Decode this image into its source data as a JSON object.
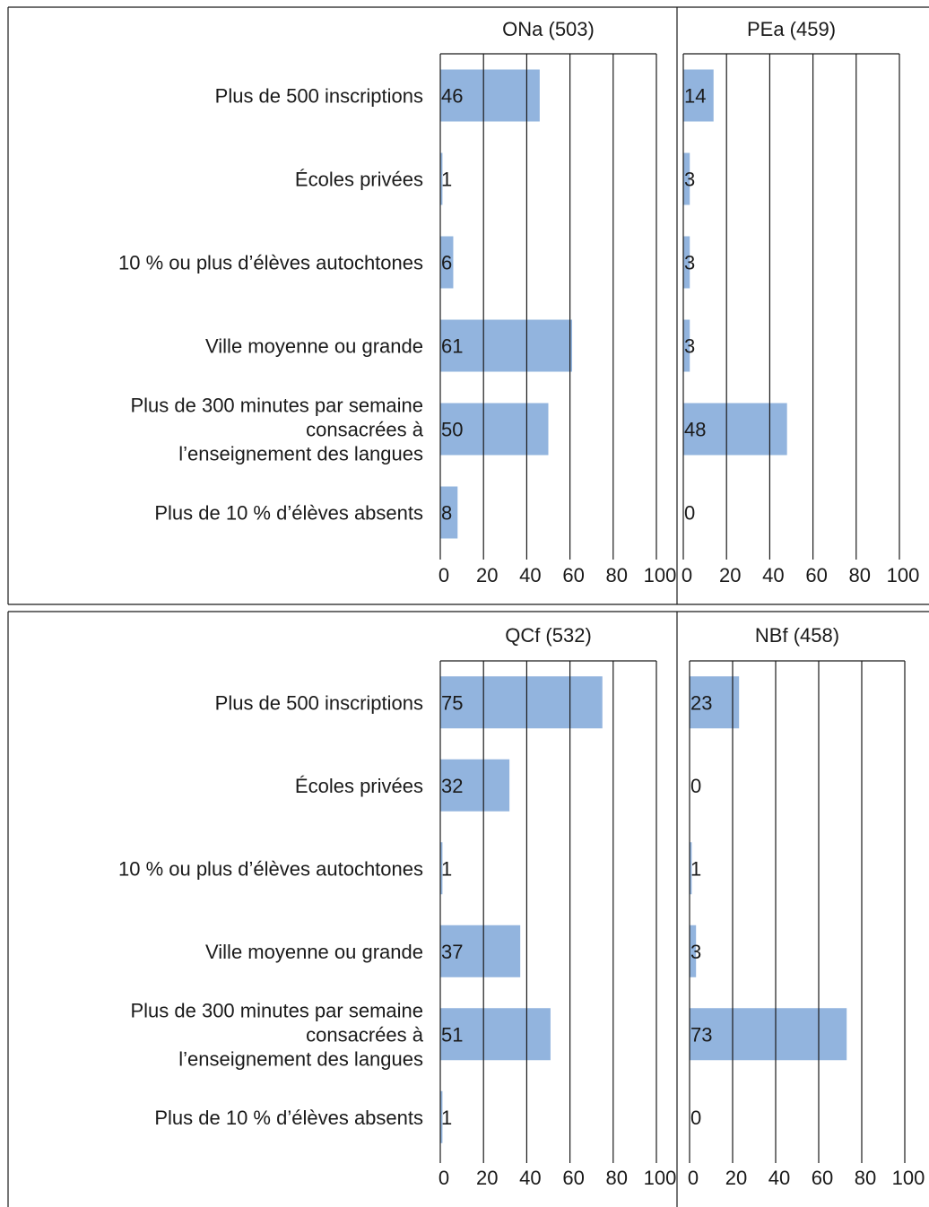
{
  "categories": [
    "Plus de 500 inscriptions",
    "Écoles privées",
    "10 % ou plus d’élèves autochtones",
    "Ville moyenne ou grande",
    "Plus de 300 minutes par semaine consacrées à l’enseignement des langues",
    "Plus de 10 % d’élèves absents"
  ],
  "category_lines": [
    [
      "Plus de 500 inscriptions"
    ],
    [
      "Écoles privées"
    ],
    [
      "10 % ou plus d’élèves autochtones"
    ],
    [
      "Ville moyenne ou grande"
    ],
    [
      "Plus de 300 minutes par semaine",
      "consacrées à",
      "l’enseignement des langues"
    ],
    [
      "Plus de 10 % d’élèves absents"
    ]
  ],
  "colors": {
    "bar": "#92b4de",
    "grid": "#1a1a1a",
    "text": "#1a1a1a"
  },
  "chart_data": [
    {
      "type": "bar",
      "orientation": "horizontal",
      "title": "ONa (503)",
      "xlim": [
        0,
        100
      ],
      "xticks": [
        "0",
        "20",
        "40",
        "60",
        "80",
        "100"
      ],
      "values": [
        46,
        1,
        6,
        61,
        50,
        8
      ]
    },
    {
      "type": "bar",
      "orientation": "horizontal",
      "title": "PEa (459)",
      "xlim": [
        0,
        100
      ],
      "xticks": [
        "0",
        "20",
        "40",
        "60",
        "80",
        "100"
      ],
      "values": [
        14,
        3,
        3,
        3,
        48,
        0
      ]
    },
    {
      "type": "bar",
      "orientation": "horizontal",
      "title": "QCf (532)",
      "xlim": [
        0,
        100
      ],
      "xticks": [
        "0",
        "20",
        "40",
        "60",
        "80",
        "100"
      ],
      "values": [
        75,
        32,
        1,
        37,
        51,
        1
      ]
    },
    {
      "type": "bar",
      "orientation": "horizontal",
      "title": "NBf (458)",
      "xlim": [
        0,
        100
      ],
      "xticks": [
        "0",
        "20",
        "40",
        "60",
        "80",
        "100"
      ],
      "values": [
        23,
        0,
        1,
        3,
        73,
        0
      ]
    }
  ]
}
